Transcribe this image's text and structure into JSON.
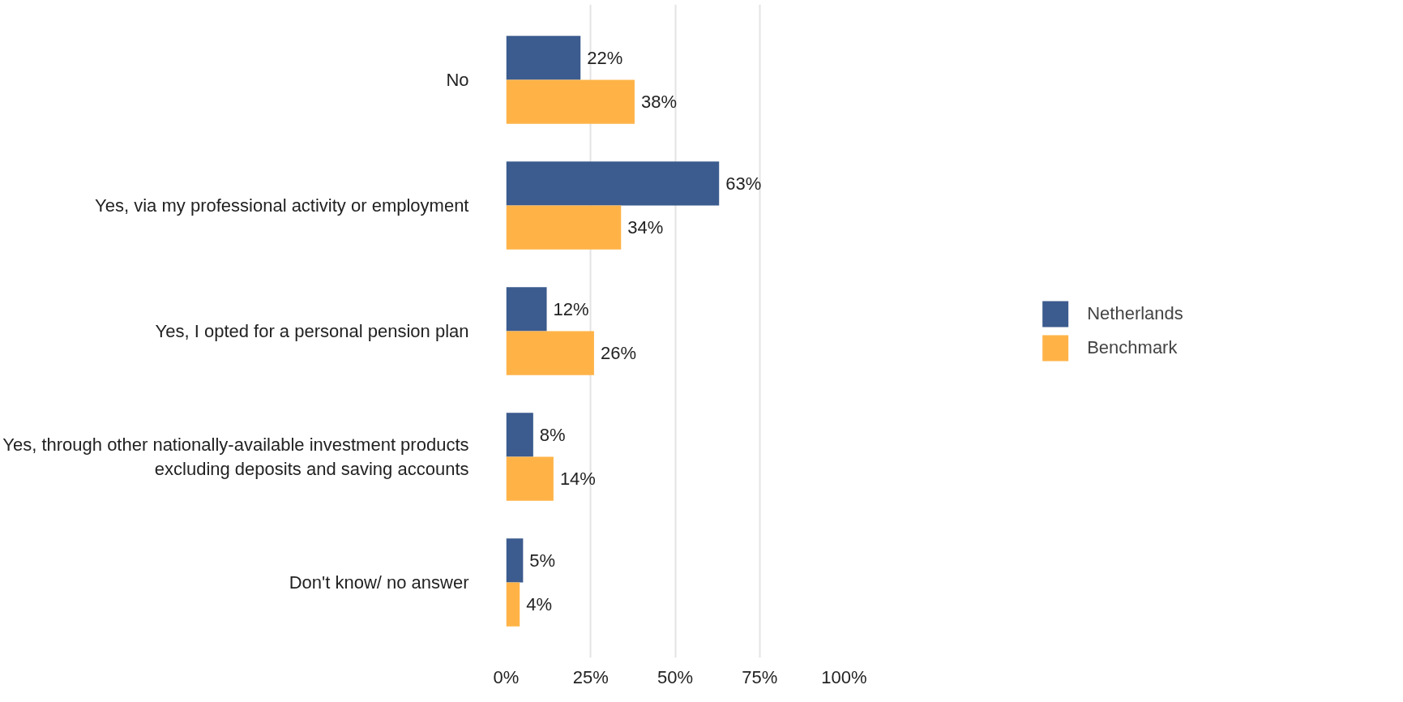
{
  "chart_data": {
    "type": "bar",
    "orientation": "horizontal",
    "categories": [
      "No",
      "Yes, via my professional activity or employment",
      "Yes, I opted for a personal pension plan",
      "Yes, through other nationally-available investment products\nexcluding deposits and saving accounts",
      "Don't know/ no answer"
    ],
    "series": [
      {
        "name": "Netherlands",
        "color": "#3c5b8e",
        "values": [
          22,
          63,
          12,
          8,
          5
        ],
        "value_labels": [
          "22%",
          "63%",
          "12%",
          "8%",
          "5%"
        ]
      },
      {
        "name": "Benchmark",
        "color": "#ffb347",
        "values": [
          38,
          34,
          26,
          14,
          4
        ],
        "value_labels": [
          "38%",
          "34%",
          "26%",
          "14%",
          "4%"
        ]
      }
    ],
    "xlim": [
      0,
      100
    ],
    "xticks": [
      {
        "value": 0,
        "label": "0%"
      },
      {
        "value": 25,
        "label": "25%"
      },
      {
        "value": 50,
        "label": "50%"
      },
      {
        "value": 75,
        "label": "75%"
      },
      {
        "value": 100,
        "label": "100%"
      }
    ],
    "grid": "x",
    "legend": "right"
  }
}
